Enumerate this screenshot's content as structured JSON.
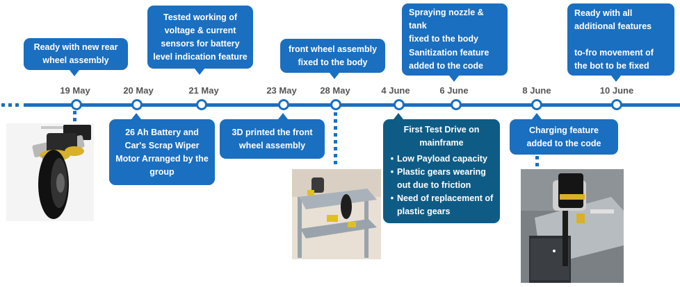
{
  "colors": {
    "primary": "#1a6fc0",
    "dark": "#0e5c86",
    "date_text": "#555555"
  },
  "dates": [
    "19 May",
    "20 May",
    "21 May",
    "23 May",
    "28 May",
    "4 June",
    "6 June",
    "8 June",
    "10 June"
  ],
  "events": {
    "rear_wheel": "Ready with new rear wheel assembly",
    "battery": [
      "26 Ah Battery and",
      "Car's Scrap Wiper",
      "Motor Arranged by the",
      "group"
    ],
    "voltage": [
      "Tested working of",
      "voltage & current",
      "sensors for battery",
      "level indication feature"
    ],
    "printed_front": [
      "3D printed the front",
      "wheel assembly"
    ],
    "front_wheel": [
      "front wheel assembly",
      "fixed to the body"
    ],
    "test_drive": {
      "title": [
        "First Test Drive on",
        "mainframe"
      ],
      "bullets": [
        "Low Payload capacity",
        "Plastic gears wearing out due to friction",
        "Need of replacement of plastic gears"
      ]
    },
    "spraying": [
      "Spraying nozzle & tank",
      "fixed to the body"
    ],
    "sanitization": [
      "Sanitization feature",
      "added to the code"
    ],
    "charging": [
      "Charging feature",
      "added to the code"
    ],
    "ready_all": [
      "Ready with all",
      "additional features"
    ],
    "to_fro": [
      "to-fro movement of",
      "the bot  to be fixed"
    ]
  },
  "icons": {
    "bullet": "•"
  }
}
